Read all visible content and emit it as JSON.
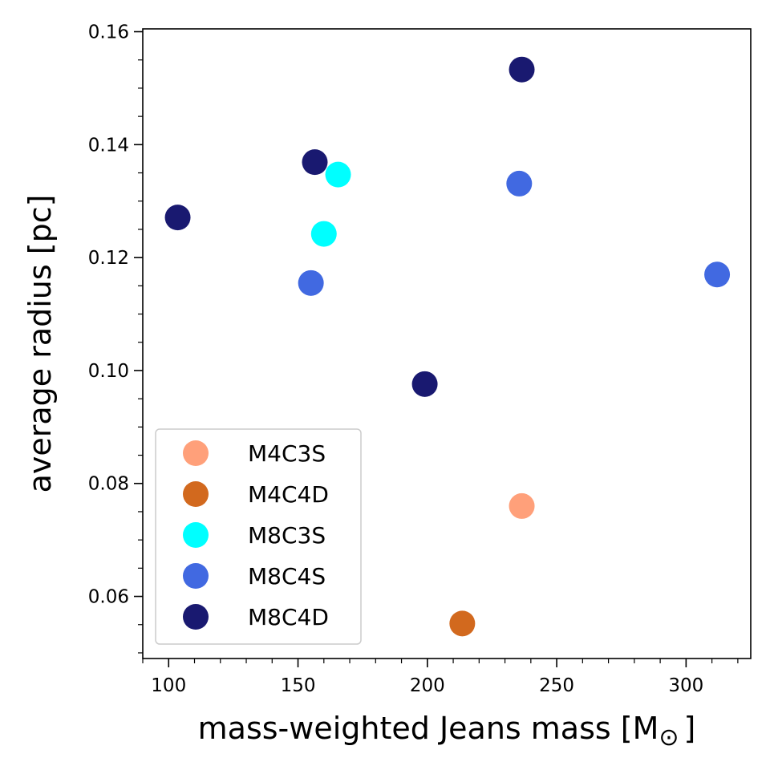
{
  "chart_data": {
    "type": "scatter",
    "xlabel": "mass-weighted Jeans mass [M",
    "xlabel_unit_symbol": "⊙",
    "xlabel_suffix": "]",
    "ylabel": "average radius [pc]",
    "xlim": [
      90,
      325
    ],
    "ylim": [
      0.049,
      0.1605
    ],
    "x_ticks": [
      100,
      150,
      200,
      250,
      300
    ],
    "y_ticks": [
      0.06,
      0.08,
      0.1,
      0.12,
      0.14,
      0.16
    ],
    "y_tick_labels": [
      "0.06",
      "0.08",
      "0.10",
      "0.12",
      "0.14",
      "0.16"
    ],
    "grid": false,
    "legend_position": "lower-left",
    "series": [
      {
        "name": "M4C3S",
        "color": "#FFA07A",
        "points": [
          [
            236.5,
            0.076
          ]
        ]
      },
      {
        "name": "M4C4D",
        "color": "#D2691E",
        "points": [
          [
            213.5,
            0.0552
          ]
        ]
      },
      {
        "name": "M8C3S",
        "color": "#00FFFF",
        "points": [
          [
            165.5,
            0.1347
          ],
          [
            160.0,
            0.1242
          ]
        ]
      },
      {
        "name": "M8C4S",
        "color": "#4169E1",
        "points": [
          [
            235.5,
            0.1331
          ],
          [
            155.0,
            0.1155
          ],
          [
            312.0,
            0.117
          ]
        ]
      },
      {
        "name": "M8C4D",
        "color": "#191970",
        "points": [
          [
            236.5,
            0.1533
          ],
          [
            156.5,
            0.1369
          ],
          [
            103.5,
            0.1271
          ],
          [
            199.0,
            0.0976
          ]
        ]
      }
    ]
  }
}
